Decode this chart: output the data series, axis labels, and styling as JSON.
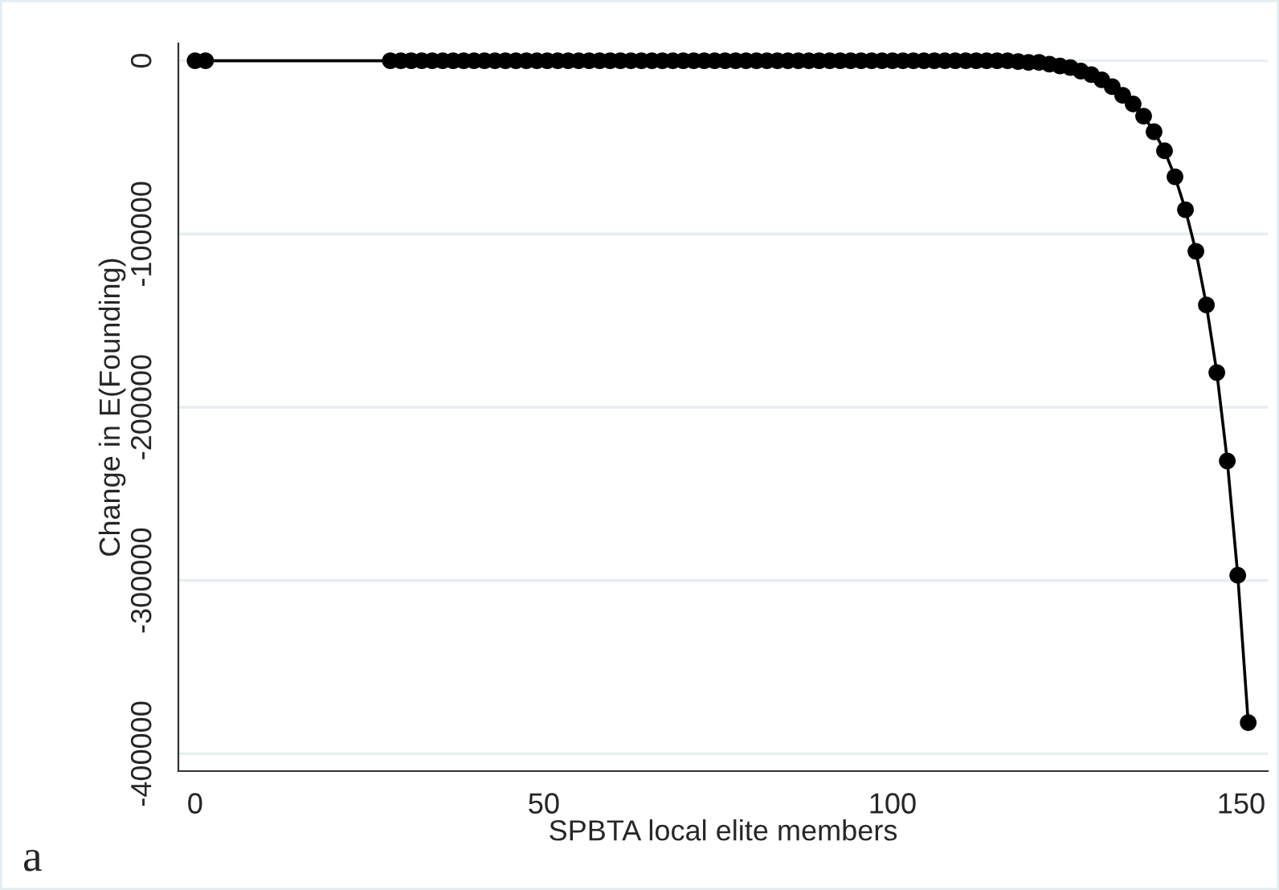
{
  "chart_data": {
    "type": "line",
    "xlabel": "SPBTA local elite members",
    "ylabel": "Change in E(Founding)",
    "annotations": [
      "a"
    ],
    "x": [
      0,
      1.5,
      28,
      29.5,
      31,
      32.5,
      34,
      35.5,
      37,
      38.5,
      40,
      41.5,
      43,
      44.5,
      46,
      47.5,
      49,
      50.5,
      52,
      53.5,
      55,
      56.5,
      58,
      59.5,
      61,
      62.5,
      64,
      65.5,
      67,
      68.5,
      70,
      71.5,
      73,
      74.5,
      76,
      77.5,
      79,
      80.5,
      82,
      83.5,
      85,
      86.5,
      88,
      89.5,
      91,
      92.5,
      94,
      95.5,
      97,
      98.5,
      100,
      101.5,
      103,
      104.5,
      106,
      107.5,
      109,
      110.5,
      112,
      113.5,
      115,
      116.5,
      118,
      119.5,
      121,
      122.5,
      124,
      125.5,
      127,
      128.5,
      130,
      131.5,
      133,
      134.5,
      136,
      137.5,
      139,
      140.5,
      142,
      143.5,
      145,
      146.5,
      148,
      149.5,
      151
    ],
    "series": [
      {
        "color": "#000000",
        "values": [
          0,
          0,
          0,
          0,
          0,
          0,
          0,
          0,
          0,
          0,
          0,
          0,
          0,
          0,
          0,
          0,
          0,
          0,
          0,
          0,
          0,
          0,
          0,
          0,
          0,
          0,
          0,
          0,
          0,
          0,
          0,
          0,
          0,
          0,
          0,
          0,
          0,
          0,
          0,
          0,
          0,
          0,
          0,
          0,
          0,
          0,
          0,
          0,
          0,
          0,
          0,
          0,
          0,
          0,
          0,
          0,
          0,
          0,
          0,
          0,
          0,
          0,
          -500,
          -1000,
          -1000,
          -2000,
          -3000,
          -4000,
          -6000,
          -8000,
          -11000,
          -15000,
          -20000,
          -25000,
          -32000,
          -41000,
          -52000,
          -67000,
          -86000,
          -110000,
          -141000,
          -180000,
          -231000,
          -297000,
          -382000
        ]
      }
    ],
    "xlim": [
      -2.4,
      153.8
    ],
    "xticks": [
      0,
      50,
      100,
      150
    ],
    "ylim": [
      -410000,
      10000
    ],
    "yticks": [
      0,
      -100000,
      -200000,
      -300000,
      -400000
    ],
    "grid": "y",
    "marker": "circle",
    "line_style": "solid",
    "legend": false
  }
}
